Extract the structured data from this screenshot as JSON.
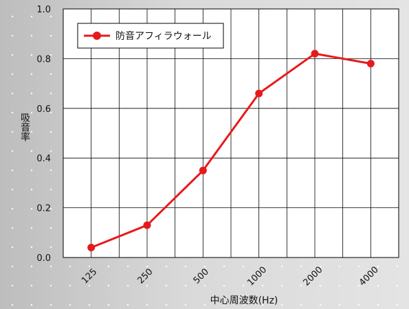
{
  "chart_data": {
    "type": "line",
    "categories": [
      "125",
      "250",
      "500",
      "1000",
      "2000",
      "4000"
    ],
    "series": [
      {
        "name": "防音アフィラウォール",
        "color": "#e8191c",
        "values": [
          0.04,
          0.13,
          0.35,
          0.66,
          0.82,
          0.78
        ]
      }
    ],
    "xlabel": "中心周波数(Hz)",
    "ylabel": "吸音率",
    "ylim": [
      0,
      1.0
    ],
    "yticks": [
      "0.0",
      "0.2",
      "0.4",
      "0.6",
      "0.8",
      "1.0"
    ],
    "grid": true,
    "legend_position": "top-left",
    "plot_background": "#ffffff",
    "grid_color": "#000000"
  }
}
